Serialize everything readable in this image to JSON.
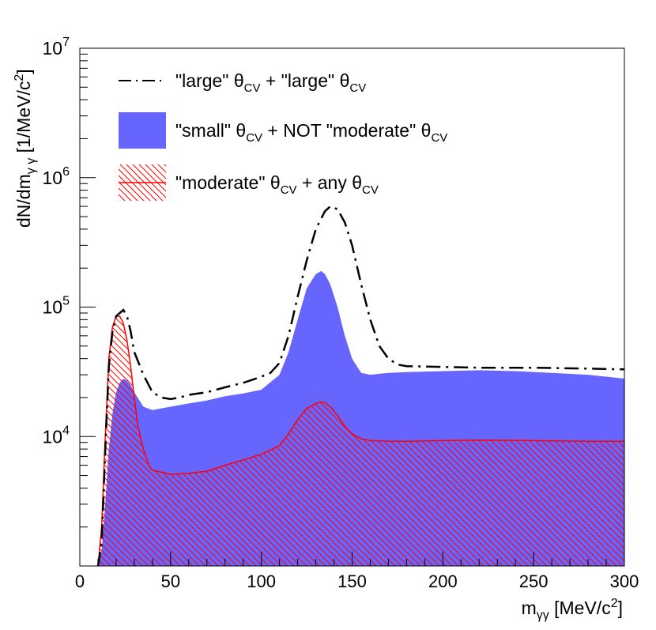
{
  "chart_data": {
    "type": "area",
    "xscale": "linear",
    "yscale": "log",
    "xlim": [
      0,
      300
    ],
    "ylim_exp": [
      3,
      7
    ],
    "xticks": [
      0,
      50,
      100,
      150,
      200,
      250,
      300
    ],
    "xtick_labels": [
      "0",
      "50",
      "100",
      "150",
      "200",
      "250",
      "300"
    ],
    "yticks": [
      {
        "exp": 4,
        "base": "10",
        "sup": "4"
      },
      {
        "exp": 5,
        "base": "10",
        "sup": "5"
      },
      {
        "exp": 6,
        "base": "10",
        "sup": "6"
      },
      {
        "exp": 7,
        "base": "10",
        "sup": "7"
      }
    ],
    "xlabel": {
      "m": "m",
      "sub": "γγ",
      "unit": " [MeV/c",
      "sup": "2",
      "close": "]"
    },
    "ylabel": {
      "pre": "dN/dm",
      "sub": "γ γ",
      "unit": " [1/MeV/c",
      "sup": "2",
      "close": "]"
    },
    "legend": {
      "position": "top-left",
      "entries": [
        {
          "parts": [
            "\"large\" θ",
            "CV",
            " + \"large\" θ",
            "CV"
          ]
        },
        {
          "parts": [
            "\"small\" θ",
            "CV",
            " + NOT \"moderate\" θ",
            "CV"
          ]
        },
        {
          "parts": [
            "\"moderate\" θ",
            "CV",
            " + any θ",
            "CV"
          ]
        }
      ]
    },
    "series": [
      {
        "name": "\"large\" θCV + \"large\" θCV",
        "style": "dash-dot",
        "color": "#000000",
        "x": [
          10,
          12,
          14,
          16,
          18,
          20,
          22,
          24,
          26,
          28,
          30,
          35,
          40,
          45,
          50,
          55,
          60,
          70,
          80,
          90,
          100,
          105,
          110,
          115,
          120,
          125,
          130,
          135,
          138,
          142,
          146,
          150,
          155,
          160,
          165,
          170,
          175,
          180,
          200,
          220,
          250,
          280,
          300
        ],
        "y": [
          1000,
          1500,
          8000,
          35000,
          65000,
          85000,
          90000,
          95000,
          85000,
          65000,
          45000,
          30000,
          22000,
          20000,
          19500,
          20000,
          21000,
          22000,
          24000,
          26000,
          29000,
          31000,
          37000,
          60000,
          120000,
          230000,
          400000,
          550000,
          600000,
          570000,
          450000,
          300000,
          150000,
          80000,
          50000,
          40000,
          36000,
          35000,
          34500,
          34000,
          34000,
          33500,
          33000
        ]
      },
      {
        "name": "\"small\" θCV + NOT \"moderate\" θCV",
        "style": "fill",
        "color": "#6666ff",
        "x": [
          10,
          12,
          14,
          16,
          18,
          20,
          22,
          24,
          26,
          28,
          30,
          35,
          40,
          45,
          50,
          60,
          70,
          80,
          90,
          100,
          110,
          115,
          120,
          125,
          130,
          133,
          135,
          138,
          142,
          146,
          150,
          155,
          160,
          165,
          170,
          180,
          200,
          220,
          240,
          260,
          280,
          300
        ],
        "y": [
          1000,
          1300,
          3000,
          8000,
          15000,
          22000,
          26000,
          28000,
          27000,
          25000,
          22000,
          17000,
          16000,
          16500,
          17000,
          18000,
          19000,
          20500,
          21500,
          23000,
          30000,
          45000,
          80000,
          140000,
          180000,
          190000,
          180000,
          150000,
          100000,
          60000,
          40000,
          31000,
          30000,
          30500,
          31000,
          31500,
          32000,
          32500,
          32000,
          31000,
          30000,
          28000
        ]
      },
      {
        "name": "\"moderate\" θCV + any θCV",
        "style": "hatch",
        "color": "#ff0000",
        "x": [
          10,
          12,
          14,
          16,
          18,
          20,
          22,
          24,
          26,
          28,
          30,
          32,
          35,
          38,
          40,
          45,
          50,
          60,
          70,
          80,
          90,
          100,
          110,
          115,
          120,
          125,
          130,
          133,
          135,
          138,
          142,
          146,
          150,
          155,
          160,
          170,
          180,
          200,
          220,
          250,
          280,
          300
        ],
        "y": [
          1000,
          2000,
          10000,
          40000,
          70000,
          85000,
          85000,
          75000,
          55000,
          35000,
          20000,
          12000,
          8000,
          6000,
          5500,
          5300,
          5100,
          5200,
          5400,
          6000,
          6600,
          7300,
          8500,
          10500,
          13500,
          16500,
          18000,
          18500,
          18200,
          17000,
          14500,
          12000,
          10500,
          9600,
          9300,
          9200,
          9200,
          9300,
          9400,
          9300,
          9200,
          9200
        ]
      }
    ]
  }
}
